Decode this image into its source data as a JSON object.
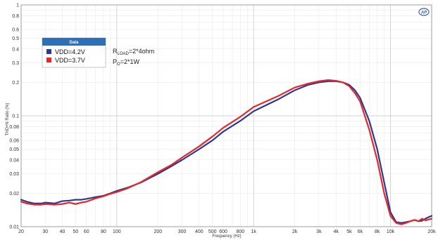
{
  "chart_data": {
    "type": "line",
    "title": "",
    "xlabel": "Frequency (Hz)",
    "ylabel": "THD+N Ratio (%)",
    "xscale": "log",
    "yscale": "log",
    "xlim": [
      20,
      20000
    ],
    "ylim": [
      0.01,
      1
    ],
    "grid": true,
    "x_ticks": [
      20,
      30,
      40,
      50,
      60,
      80,
      100,
      200,
      300,
      400,
      500,
      600,
      800,
      1000,
      2000,
      3000,
      4000,
      5000,
      6000,
      8000,
      10000,
      20000
    ],
    "x_tick_labels": [
      "20",
      "30",
      "40",
      "50",
      "60",
      "80",
      "100",
      "200",
      "300",
      "400",
      "500",
      "600",
      "800",
      "1k",
      "2k",
      "3k",
      "4k",
      "5k",
      "6k",
      "8k",
      "10k",
      "20k"
    ],
    "y_ticks": [
      0.01,
      0.02,
      0.03,
      0.04,
      0.05,
      0.06,
      0.08,
      0.1,
      0.2,
      0.3,
      0.4,
      0.5,
      0.6,
      0.8,
      1
    ],
    "y_tick_labels": [
      "0.01",
      "0.02",
      "0.03",
      "0.04",
      "0.05",
      "0.06",
      "0.08",
      "0.1",
      "0.2",
      "0.3",
      "0.4",
      "0.5",
      "0.6",
      "0.8",
      "1"
    ],
    "legend": {
      "title": "Data",
      "placement": "top-left",
      "entries": [
        "VDD=4.2V",
        "VDD=3.7V"
      ]
    },
    "series": [
      {
        "name": "VDD=4.2V",
        "color": "#2b3a8f",
        "x": [
          20,
          22,
          25,
          28,
          30,
          35,
          40,
          45,
          50,
          55,
          60,
          70,
          80,
          90,
          100,
          120,
          150,
          200,
          250,
          300,
          400,
          500,
          600,
          800,
          1000,
          1500,
          2000,
          2500,
          3000,
          3500,
          4000,
          4500,
          5000,
          5500,
          6000,
          7000,
          8000,
          9000,
          10000,
          11000,
          12000,
          13000,
          14000,
          15000,
          16000,
          17000,
          18000,
          19000,
          20000
        ],
        "y": [
          0.0175,
          0.0168,
          0.0162,
          0.0162,
          0.0165,
          0.0162,
          0.017,
          0.0172,
          0.0175,
          0.0175,
          0.0178,
          0.0185,
          0.019,
          0.02,
          0.021,
          0.0225,
          0.025,
          0.03,
          0.035,
          0.04,
          0.05,
          0.06,
          0.072,
          0.09,
          0.11,
          0.14,
          0.17,
          0.19,
          0.2,
          0.205,
          0.205,
          0.2,
          0.19,
          0.17,
          0.145,
          0.09,
          0.05,
          0.025,
          0.0135,
          0.011,
          0.0108,
          0.011,
          0.0112,
          0.0115,
          0.0112,
          0.0113,
          0.0118,
          0.0122,
          0.0125
        ]
      },
      {
        "name": "VDD=3.7V",
        "color": "#e8262a",
        "x": [
          20,
          22,
          25,
          28,
          30,
          35,
          40,
          45,
          50,
          55,
          60,
          70,
          80,
          90,
          100,
          120,
          150,
          200,
          250,
          300,
          400,
          500,
          600,
          800,
          1000,
          1500,
          2000,
          2500,
          3000,
          3500,
          4000,
          4500,
          5000,
          5500,
          6000,
          7000,
          8000,
          9000,
          10000,
          11000,
          12000,
          13000,
          14000,
          15000,
          16000,
          17000,
          18000,
          19000,
          20000
        ],
        "y": [
          0.0168,
          0.0162,
          0.0158,
          0.0158,
          0.016,
          0.0158,
          0.016,
          0.0165,
          0.016,
          0.0165,
          0.0168,
          0.018,
          0.0188,
          0.0198,
          0.0205,
          0.0222,
          0.0252,
          0.031,
          0.036,
          0.042,
          0.053,
          0.065,
          0.078,
          0.098,
          0.12,
          0.15,
          0.18,
          0.195,
          0.205,
          0.21,
          0.207,
          0.2,
          0.185,
          0.16,
          0.135,
          0.075,
          0.04,
          0.02,
          0.0125,
          0.0108,
          0.0105,
          0.0108,
          0.0112,
          0.0115,
          0.0112,
          0.0118,
          0.0114,
          0.0116,
          0.0118
        ]
      }
    ],
    "annotations": [
      {
        "main": "R",
        "sub": "LOAD",
        "rest": "=2*4ohm"
      },
      {
        "main": "P",
        "sub": "O",
        "rest": "=2*1W"
      }
    ],
    "logo_text": "AP"
  }
}
